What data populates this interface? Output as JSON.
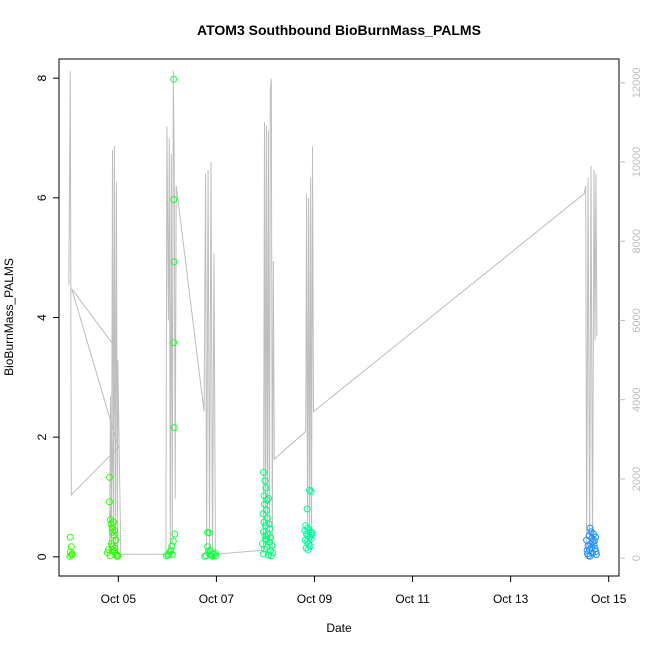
{
  "chart_data": {
    "type": "scatter",
    "title": "ATOM3 Southbound BioBurnMass_PALMS",
    "xlabel": "Date",
    "ylabel": "BioBurnMass_PALMS",
    "x_ticks": [
      {
        "value": 5,
        "label": "Oct 05"
      },
      {
        "value": 7,
        "label": "Oct 07"
      },
      {
        "value": 9,
        "label": "Oct 09"
      },
      {
        "value": 11,
        "label": "Oct 11"
      },
      {
        "value": 13,
        "label": "Oct 13"
      },
      {
        "value": 15,
        "label": "Oct 15"
      }
    ],
    "y_ticks": [
      0,
      2,
      4,
      6,
      8
    ],
    "y2_ticks": [
      0,
      2000,
      4000,
      6000,
      8000,
      10000,
      12000
    ],
    "xlim": [
      3.79,
      15.21
    ],
    "ylim": [
      -0.32,
      8.32
    ],
    "y2lim": [
      -450,
      12600
    ],
    "grid": false,
    "colors": {
      "altitude_line": "#bdbdbd",
      "axis": "#000000",
      "secondary_axis": "#bdbdbd"
    },
    "series": [
      {
        "role": "points",
        "points": [
          {
            "x": 4.02,
            "y": 0.33,
            "c": "#33ff00"
          },
          {
            "x": 4.04,
            "y": 0.17,
            "c": "#33ff00"
          },
          {
            "x": 4.02,
            "y": 0.08,
            "c": "#33ff00"
          },
          {
            "x": 4.05,
            "y": 0.03,
            "c": "#33ff00"
          },
          {
            "x": 4.01,
            "y": 0.01,
            "c": "#33ff00"
          },
          {
            "x": 4.06,
            "y": 0.05,
            "c": "#33ff00"
          },
          {
            "x": 4.82,
            "y": 1.33,
            "c": "#2bff00"
          },
          {
            "x": 4.82,
            "y": 0.92,
            "c": "#2bff00"
          },
          {
            "x": 4.84,
            "y": 0.62,
            "c": "#2bff00"
          },
          {
            "x": 4.85,
            "y": 0.55,
            "c": "#2bff00"
          },
          {
            "x": 4.87,
            "y": 0.48,
            "c": "#2bff00"
          },
          {
            "x": 4.89,
            "y": 0.41,
            "c": "#2bff00"
          },
          {
            "x": 4.91,
            "y": 0.36,
            "c": "#2bff00"
          },
          {
            "x": 4.93,
            "y": 0.44,
            "c": "#2bff00"
          },
          {
            "x": 4.95,
            "y": 0.28,
            "c": "#2bff00"
          },
          {
            "x": 4.86,
            "y": 0.22,
            "c": "#2bff00"
          },
          {
            "x": 4.88,
            "y": 0.18,
            "c": "#2bff00"
          },
          {
            "x": 4.9,
            "y": 0.12,
            "c": "#2bff00"
          },
          {
            "x": 4.92,
            "y": 0.09,
            "c": "#2bff00"
          },
          {
            "x": 4.94,
            "y": 0.06,
            "c": "#2bff00"
          },
          {
            "x": 4.96,
            "y": 0.03,
            "c": "#2bff00"
          },
          {
            "x": 4.97,
            "y": 0.01,
            "c": "#2bff00"
          },
          {
            "x": 4.78,
            "y": 0.07,
            "c": "#2bff00"
          },
          {
            "x": 4.8,
            "y": 0.12,
            "c": "#2bff00"
          },
          {
            "x": 4.99,
            "y": 0.02,
            "c": "#2bff00"
          },
          {
            "x": 4.9,
            "y": 0.58,
            "c": "#2bff00"
          },
          {
            "x": 4.93,
            "y": 0.15,
            "c": "#2bff00"
          },
          {
            "x": 4.83,
            "y": 0.02,
            "c": "#2bff00"
          },
          {
            "x": 5.98,
            "y": 0.02,
            "c": "#19ff33"
          },
          {
            "x": 6.01,
            "y": 0.03,
            "c": "#19ff33"
          },
          {
            "x": 6.03,
            "y": 0.05,
            "c": "#19ff33"
          },
          {
            "x": 6.05,
            "y": 0.08,
            "c": "#19ff33"
          },
          {
            "x": 6.07,
            "y": 0.11,
            "c": "#19ff33"
          },
          {
            "x": 6.09,
            "y": 0.18,
            "c": "#19ff33"
          },
          {
            "x": 6.12,
            "y": 0.26,
            "c": "#19ff33"
          },
          {
            "x": 6.15,
            "y": 0.38,
            "c": "#19ff33"
          },
          {
            "x": 6.14,
            "y": 2.16,
            "c": "#19ff33"
          },
          {
            "x": 6.13,
            "y": 3.58,
            "c": "#19ff33"
          },
          {
            "x": 6.14,
            "y": 4.93,
            "c": "#19ff33"
          },
          {
            "x": 6.13,
            "y": 5.97,
            "c": "#19ff33"
          },
          {
            "x": 6.13,
            "y": 7.98,
            "c": "#19ff33"
          },
          {
            "x": 6.1,
            "y": 0.04,
            "c": "#19ff33"
          },
          {
            "x": 6.82,
            "y": 0.41,
            "c": "#15ff44"
          },
          {
            "x": 6.85,
            "y": 0.4,
            "c": "#15ff44"
          },
          {
            "x": 6.82,
            "y": 0.17,
            "c": "#15ff44"
          },
          {
            "x": 6.84,
            "y": 0.09,
            "c": "#15ff44"
          },
          {
            "x": 6.86,
            "y": 0.05,
            "c": "#15ff44"
          },
          {
            "x": 6.88,
            "y": 0.03,
            "c": "#15ff44"
          },
          {
            "x": 6.9,
            "y": 0.02,
            "c": "#15ff44"
          },
          {
            "x": 6.92,
            "y": 0.01,
            "c": "#15ff44"
          },
          {
            "x": 6.95,
            "y": 0.04,
            "c": "#15ff44"
          },
          {
            "x": 6.98,
            "y": 0.06,
            "c": "#15ff44"
          },
          {
            "x": 6.79,
            "y": 0.02,
            "c": "#15ff44"
          },
          {
            "x": 6.76,
            "y": 0.01,
            "c": "#15ff44"
          },
          {
            "x": 6.99,
            "y": 0.02,
            "c": "#15ff44"
          },
          {
            "x": 6.87,
            "y": 0.11,
            "c": "#15ff44"
          },
          {
            "x": 7.96,
            "y": 1.41,
            "c": "#00ff77"
          },
          {
            "x": 7.99,
            "y": 1.27,
            "c": "#00ff77"
          },
          {
            "x": 8.01,
            "y": 1.15,
            "c": "#00ff77"
          },
          {
            "x": 7.97,
            "y": 1.02,
            "c": "#00ff77"
          },
          {
            "x": 8.03,
            "y": 0.95,
            "c": "#00ff77"
          },
          {
            "x": 8.06,
            "y": 0.98,
            "c": "#00ff77"
          },
          {
            "x": 7.98,
            "y": 0.88,
            "c": "#00ff77"
          },
          {
            "x": 8.02,
            "y": 0.78,
            "c": "#00ff77"
          },
          {
            "x": 7.95,
            "y": 0.72,
            "c": "#00ff77"
          },
          {
            "x": 8.04,
            "y": 0.65,
            "c": "#00ff77"
          },
          {
            "x": 7.97,
            "y": 0.58,
            "c": "#00ff77"
          },
          {
            "x": 8.07,
            "y": 0.55,
            "c": "#00ff77"
          },
          {
            "x": 8.0,
            "y": 0.52,
            "c": "#00ff77"
          },
          {
            "x": 8.09,
            "y": 0.47,
            "c": "#00ff77"
          },
          {
            "x": 7.96,
            "y": 0.42,
            "c": "#00ff77"
          },
          {
            "x": 8.05,
            "y": 0.38,
            "c": "#00ff77"
          },
          {
            "x": 7.99,
            "y": 0.35,
            "c": "#00ff77"
          },
          {
            "x": 8.11,
            "y": 0.32,
            "c": "#00ff77"
          },
          {
            "x": 8.02,
            "y": 0.28,
            "c": "#00ff77"
          },
          {
            "x": 8.08,
            "y": 0.25,
            "c": "#00ff77"
          },
          {
            "x": 7.94,
            "y": 0.22,
            "c": "#00ff77"
          },
          {
            "x": 8.13,
            "y": 0.19,
            "c": "#00ff77"
          },
          {
            "x": 8.04,
            "y": 0.16,
            "c": "#00ff77"
          },
          {
            "x": 7.98,
            "y": 0.13,
            "c": "#00ff77"
          },
          {
            "x": 8.1,
            "y": 0.1,
            "c": "#00ff77"
          },
          {
            "x": 8.15,
            "y": 0.07,
            "c": "#00ff77"
          },
          {
            "x": 7.96,
            "y": 0.05,
            "c": "#00ff77"
          },
          {
            "x": 8.06,
            "y": 0.03,
            "c": "#00ff77"
          },
          {
            "x": 8.12,
            "y": 0.02,
            "c": "#00ff77"
          },
          {
            "x": 8.01,
            "y": 0.3,
            "c": "#00ff77"
          },
          {
            "x": 8.9,
            "y": 1.11,
            "c": "#00ff99"
          },
          {
            "x": 8.93,
            "y": 1.09,
            "c": "#00ff99"
          },
          {
            "x": 8.85,
            "y": 0.8,
            "c": "#00ff99"
          },
          {
            "x": 8.82,
            "y": 0.52,
            "c": "#00ff99"
          },
          {
            "x": 8.86,
            "y": 0.48,
            "c": "#00ff99"
          },
          {
            "x": 8.89,
            "y": 0.45,
            "c": "#00ff99"
          },
          {
            "x": 8.92,
            "y": 0.42,
            "c": "#00ff99"
          },
          {
            "x": 8.95,
            "y": 0.4,
            "c": "#00ff99"
          },
          {
            "x": 8.84,
            "y": 0.38,
            "c": "#00ff99"
          },
          {
            "x": 8.87,
            "y": 0.35,
            "c": "#00ff99"
          },
          {
            "x": 8.9,
            "y": 0.33,
            "c": "#00ff99"
          },
          {
            "x": 8.93,
            "y": 0.3,
            "c": "#00ff99"
          },
          {
            "x": 8.81,
            "y": 0.28,
            "c": "#00ff99"
          },
          {
            "x": 8.85,
            "y": 0.25,
            "c": "#00ff99"
          },
          {
            "x": 8.88,
            "y": 0.22,
            "c": "#00ff99"
          },
          {
            "x": 8.91,
            "y": 0.18,
            "c": "#00ff99"
          },
          {
            "x": 8.83,
            "y": 0.15,
            "c": "#00ff99"
          },
          {
            "x": 8.87,
            "y": 0.12,
            "c": "#00ff99"
          },
          {
            "x": 8.94,
            "y": 0.37,
            "c": "#00ff99"
          },
          {
            "x": 8.8,
            "y": 0.44,
            "c": "#00ff99"
          },
          {
            "x": 14.55,
            "y": 0.28,
            "c": "#1e90ff"
          },
          {
            "x": 14.58,
            "y": 0.18,
            "c": "#1e90ff"
          },
          {
            "x": 14.6,
            "y": 0.35,
            "c": "#1e90ff"
          },
          {
            "x": 14.62,
            "y": 0.48,
            "c": "#1e90ff"
          },
          {
            "x": 14.64,
            "y": 0.42,
            "c": "#1e90ff"
          },
          {
            "x": 14.66,
            "y": 0.31,
            "c": "#1e90ff"
          },
          {
            "x": 14.68,
            "y": 0.25,
            "c": "#1e90ff"
          },
          {
            "x": 14.7,
            "y": 0.2,
            "c": "#1e90ff"
          },
          {
            "x": 14.72,
            "y": 0.14,
            "c": "#1e90ff"
          },
          {
            "x": 14.74,
            "y": 0.09,
            "c": "#1e90ff"
          },
          {
            "x": 14.57,
            "y": 0.05,
            "c": "#1e90ff"
          },
          {
            "x": 14.59,
            "y": 0.02,
            "c": "#1e90ff"
          },
          {
            "x": 14.61,
            "y": 0.12,
            "c": "#1e90ff"
          },
          {
            "x": 14.63,
            "y": 0.22,
            "c": "#1e90ff"
          },
          {
            "x": 14.65,
            "y": 0.15,
            "c": "#1e90ff"
          },
          {
            "x": 14.67,
            "y": 0.06,
            "c": "#1e90ff"
          },
          {
            "x": 14.69,
            "y": 0.38,
            "c": "#1e90ff"
          },
          {
            "x": 14.71,
            "y": 0.27,
            "c": "#1e90ff"
          },
          {
            "x": 14.73,
            "y": 0.33,
            "c": "#1e90ff"
          },
          {
            "x": 14.56,
            "y": 0.11,
            "c": "#1e90ff"
          },
          {
            "x": 14.75,
            "y": 0.04,
            "c": "#1e90ff"
          },
          {
            "x": 14.62,
            "y": 0.01,
            "c": "#1e90ff"
          }
        ]
      },
      {
        "role": "secondary-axis-line",
        "points": [
          {
            "x": 3.99,
            "y": 6900
          },
          {
            "x": 4.02,
            "y": 12300
          },
          {
            "x": 4.04,
            "y": 1600
          },
          {
            "x": 5.0,
            "y": 2800
          },
          {
            "x": 4.05,
            "y": 6800
          },
          {
            "x": 4.95,
            "y": 5300
          },
          {
            "x": 4.82,
            "y": 100
          },
          {
            "x": 4.84,
            "y": 4100
          },
          {
            "x": 4.86,
            "y": 300
          },
          {
            "x": 4.88,
            "y": 10300
          },
          {
            "x": 4.9,
            "y": 200
          },
          {
            "x": 4.92,
            "y": 10400
          },
          {
            "x": 4.94,
            "y": 300
          },
          {
            "x": 4.96,
            "y": 9500
          },
          {
            "x": 4.98,
            "y": 200
          },
          {
            "x": 4.99,
            "y": 5000
          },
          {
            "x": 5.05,
            "y": 100
          },
          {
            "x": 5.97,
            "y": 100
          },
          {
            "x": 5.99,
            "y": 10900
          },
          {
            "x": 6.02,
            "y": 6000
          },
          {
            "x": 6.04,
            "y": 10600
          },
          {
            "x": 6.06,
            "y": 200
          },
          {
            "x": 6.08,
            "y": 10200
          },
          {
            "x": 6.1,
            "y": 400
          },
          {
            "x": 6.12,
            "y": 12300
          },
          {
            "x": 6.14,
            "y": 10000
          },
          {
            "x": 6.16,
            "y": 1500
          },
          {
            "x": 6.18,
            "y": 9400
          },
          {
            "x": 6.75,
            "y": 3700
          },
          {
            "x": 6.78,
            "y": 9700
          },
          {
            "x": 6.8,
            "y": 100
          },
          {
            "x": 6.83,
            "y": 9800
          },
          {
            "x": 6.86,
            "y": 200
          },
          {
            "x": 6.89,
            "y": 10000
          },
          {
            "x": 6.92,
            "y": 100
          },
          {
            "x": 6.95,
            "y": 7700
          },
          {
            "x": 6.98,
            "y": 100
          },
          {
            "x": 7.96,
            "y": 200
          },
          {
            "x": 7.98,
            "y": 11000
          },
          {
            "x": 8.0,
            "y": 300
          },
          {
            "x": 8.02,
            "y": 10900
          },
          {
            "x": 8.04,
            "y": 200
          },
          {
            "x": 8.06,
            "y": 10800
          },
          {
            "x": 8.08,
            "y": 400
          },
          {
            "x": 8.1,
            "y": 11800
          },
          {
            "x": 8.12,
            "y": 12100
          },
          {
            "x": 8.14,
            "y": 200
          },
          {
            "x": 8.16,
            "y": 7500
          },
          {
            "x": 8.18,
            "y": 2500
          },
          {
            "x": 8.82,
            "y": 3200
          },
          {
            "x": 8.84,
            "y": 9200
          },
          {
            "x": 8.86,
            "y": 200
          },
          {
            "x": 8.88,
            "y": 9100
          },
          {
            "x": 8.9,
            "y": 300
          },
          {
            "x": 8.92,
            "y": 9600
          },
          {
            "x": 8.94,
            "y": 200
          },
          {
            "x": 8.96,
            "y": 10400
          },
          {
            "x": 8.98,
            "y": 3700
          },
          {
            "x": 14.5,
            "y": 9200
          },
          {
            "x": 14.53,
            "y": 9400
          },
          {
            "x": 14.55,
            "y": 200
          },
          {
            "x": 14.58,
            "y": 9600
          },
          {
            "x": 14.61,
            "y": 300
          },
          {
            "x": 14.64,
            "y": 9900
          },
          {
            "x": 14.67,
            "y": 200
          },
          {
            "x": 14.7,
            "y": 9800
          },
          {
            "x": 14.72,
            "y": 5500
          },
          {
            "x": 14.74,
            "y": 9700
          },
          {
            "x": 14.76,
            "y": 5600
          }
        ]
      }
    ]
  }
}
